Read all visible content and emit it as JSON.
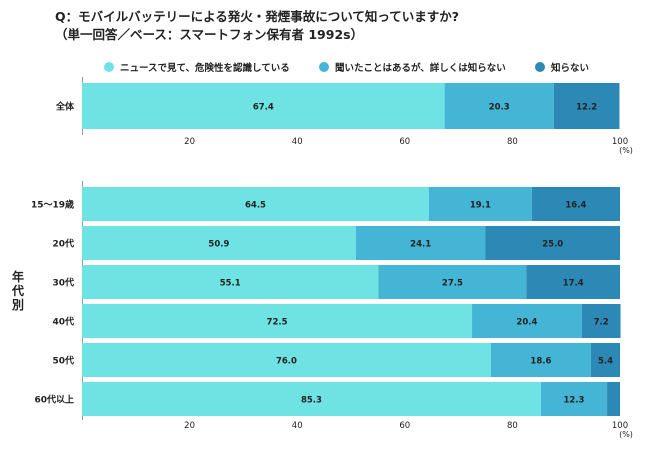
{
  "title": {
    "line1": "Q：モバイルバッテリーによる発火・発煙事故について知っていますか?",
    "line2": "（単一回答／ベース：スマートフォン保有者 1992s）"
  },
  "legend": [
    {
      "label": "ニュースで見て、危険性を認識している",
      "color": "#6fe3e3"
    },
    {
      "label": "聞いたことはあるが、詳しくは知らない",
      "color": "#45b5d5"
    },
    {
      "label": "知らない",
      "color": "#2c88b5"
    }
  ],
  "y_group_label": "年代別",
  "unit_label": "(%)",
  "chart_data": [
    {
      "type": "bar",
      "orientation": "horizontal",
      "stacked": true,
      "categories": [
        "全体"
      ],
      "series": [
        {
          "name": "ニュースで見て、危険性を認識している",
          "values": [
            67.4
          ]
        },
        {
          "name": "聞いたことはあるが、詳しくは知らない",
          "values": [
            20.3
          ]
        },
        {
          "name": "知らない",
          "values": [
            12.2
          ]
        }
      ],
      "xlim": [
        0,
        100
      ],
      "xticks": [
        "20",
        "40",
        "60",
        "80",
        "100"
      ],
      "xlabel": "(%)"
    },
    {
      "type": "bar",
      "orientation": "horizontal",
      "stacked": true,
      "categories": [
        "15〜19歳",
        "20代",
        "30代",
        "40代",
        "50代",
        "60代以上"
      ],
      "series": [
        {
          "name": "ニュースで見て、危険性を認識している",
          "values": [
            64.5,
            50.9,
            55.1,
            72.5,
            76.0,
            85.3
          ]
        },
        {
          "name": "聞いたことはあるが、詳しくは知らない",
          "values": [
            19.1,
            24.1,
            27.5,
            20.4,
            18.6,
            12.3
          ]
        },
        {
          "name": "知らない",
          "values": [
            16.4,
            25.0,
            17.4,
            7.2,
            5.4,
            2.4
          ]
        }
      ],
      "value_labels": [
        [
          "64.5",
          "19.1",
          "16.4"
        ],
        [
          "50.9",
          "24.1",
          "25.0"
        ],
        [
          "55.1",
          "27.5",
          "17.4"
        ],
        [
          "72.5",
          "20.4",
          "7.2"
        ],
        [
          "76.0",
          "18.6",
          "5.4"
        ],
        [
          "85.3",
          "12.3",
          ""
        ]
      ],
      "xlim": [
        0,
        100
      ],
      "xticks": [
        "20",
        "40",
        "60",
        "80",
        "100"
      ],
      "xlabel": "(%)"
    }
  ]
}
